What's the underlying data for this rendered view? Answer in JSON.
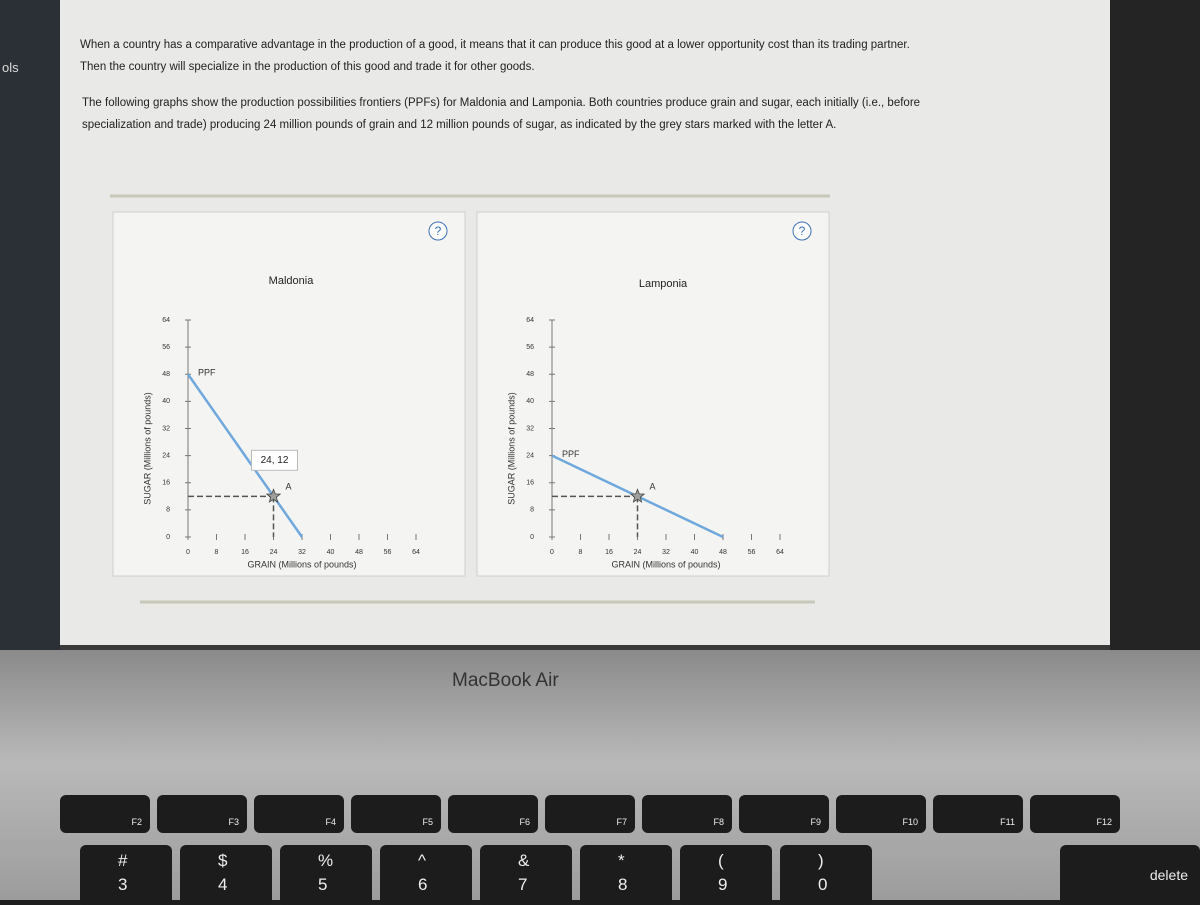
{
  "page": {
    "sidebar_label": "ols",
    "paragraphs": [
      "When a country has a comparative advantage in the production of a good, it means that it can produce this good at a lower opportunity cost than its trading partner. Then the country will specialize in the production of this good and trade it for other goods.",
      "The following graphs show the production possibilities frontiers (PPFs) for Maldonia and Lamponia. Both countries produce grain and sugar, each initially (i.e., before specialization and trade) producing 24 million pounds of grain and 12 million pounds of sugar, as indicated by the grey stars marked with the letter A."
    ],
    "brand": "MacBook Air"
  },
  "keyboard": {
    "function_keys": [
      "F2",
      "F3",
      "F4",
      "F5",
      "F6",
      "F7",
      "F8",
      "F9",
      "F10",
      "F11",
      "F12"
    ],
    "number_keys": [
      [
        "#",
        "3"
      ],
      [
        "$",
        "4"
      ],
      [
        "%",
        "5"
      ],
      [
        "^",
        "6"
      ],
      [
        "&",
        "7"
      ],
      [
        "*",
        "8"
      ],
      [
        "(",
        "9"
      ],
      [
        ")",
        "0"
      ]
    ],
    "delete": "delete"
  },
  "chart_data": [
    {
      "type": "line",
      "title": "Maldonia",
      "help": "?",
      "x_label": "GRAIN (Millions of pounds)",
      "y_label": "SUGAR (Millions of pounds)",
      "xlim": [
        0,
        64
      ],
      "ylim": [
        0,
        64
      ],
      "xticks": [
        0,
        8,
        16,
        24,
        32,
        40,
        48,
        56,
        64
      ],
      "yticks": [
        0,
        8,
        16,
        24,
        32,
        40,
        48,
        56,
        64
      ],
      "series": [
        {
          "name": "PPF",
          "color": "#6fa8dc",
          "x": [
            0,
            32
          ],
          "values": [
            48,
            0
          ]
        },
        {
          "name": "A",
          "color": "#9e9e9e",
          "marker": "star",
          "x": [
            24
          ],
          "values": [
            12
          ]
        }
      ],
      "annotation": "24, 12"
    },
    {
      "type": "line",
      "title": "Lamponia",
      "help": "?",
      "x_label": "GRAIN (Millions of pounds)",
      "y_label": "SUGAR (Millions of pounds)",
      "xlim": [
        0,
        64
      ],
      "ylim": [
        0,
        64
      ],
      "xticks": [
        0,
        8,
        16,
        24,
        32,
        40,
        48,
        56,
        64
      ],
      "yticks": [
        0,
        8,
        16,
        24,
        32,
        40,
        48,
        56,
        64
      ],
      "series": [
        {
          "name": "PPF",
          "color": "#6fa8dc",
          "x": [
            0,
            48
          ],
          "values": [
            24,
            0
          ]
        },
        {
          "name": "A",
          "color": "#9e9e9e",
          "marker": "star",
          "x": [
            24
          ],
          "values": [
            12
          ]
        }
      ]
    }
  ]
}
